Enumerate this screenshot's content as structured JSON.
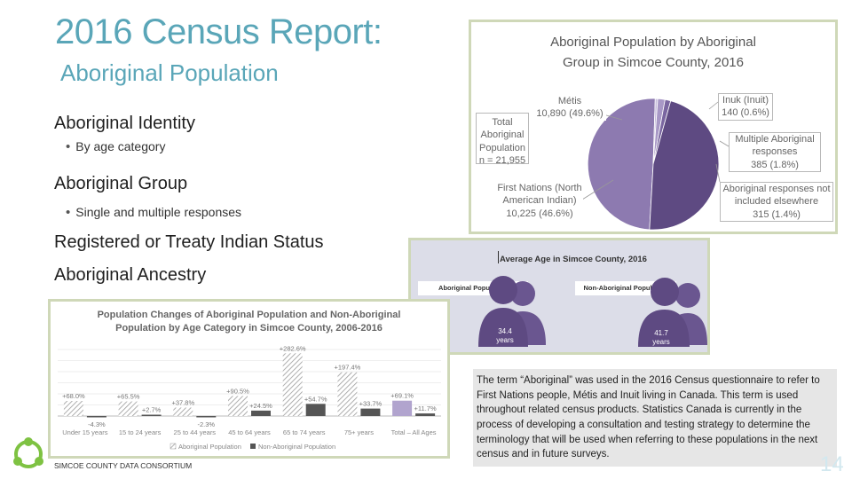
{
  "slide": {
    "title": "2016 Census Report:",
    "subtitle": "Aboriginal Population",
    "bullets": [
      {
        "heading": "Aboriginal Identity",
        "sub": "By age category"
      },
      {
        "heading": "Aboriginal Group",
        "sub": "Single and multiple responses"
      },
      {
        "heading": "Registered or Treaty Indian Status"
      },
      {
        "heading": "Aboriginal Ancestry"
      }
    ],
    "footer_org": "SIMCOE COUNTY DATA CONSORTIUM",
    "note": "The term “Aboriginal” was used in the 2016 Census questionnaire to refer to First Nations people, Métis and Inuit living in Canada. This term is used throughout related census products. Statistics Canada is currently in the process of developing a consultation and testing strategy to determine the terminology that will be used when referring to these populations in the next census and in future surveys.",
    "page_number": "14",
    "colors": {
      "accent": "#5aa6b8",
      "frame": "#cfd8b8",
      "purple_dark": "#5e4a82",
      "purple_light": "#b1a4ce"
    }
  },
  "pie_chart": {
    "title_line1": "Aboriginal Population by Aboriginal",
    "title_line2": "Group in Simcoe County, 2016",
    "total_line1": "Total",
    "total_line2": "Aboriginal",
    "total_line3": "Population",
    "total_line4": "n = 21,955",
    "slices": [
      {
        "line1": "Métis",
        "line2": "10,890 (49.6%)",
        "value": 49.6,
        "color": "#8d7ab0"
      },
      {
        "line1": "Inuk (Inuit)",
        "line2": "140 (0.6%)",
        "value": 0.6,
        "color": "#c6bcdc"
      },
      {
        "line1": "Multiple Aboriginal",
        "line2": "responses",
        "line3": "385 (1.8%)",
        "value": 1.8,
        "color": "#a898c6"
      },
      {
        "line1": "Aboriginal responses not",
        "line2": "included elsewhere",
        "line3": "315 (1.4%)",
        "value": 1.4,
        "color": "#7a66a0"
      },
      {
        "line1": "First Nations (North",
        "line2": "American Indian)",
        "line3": "10,225 (46.6%)",
        "value": 46.6,
        "color": "#5e4a82"
      }
    ]
  },
  "age_chart": {
    "title": "Average Age in Simcoe County, 2016",
    "groups": [
      {
        "label": "Aboriginal Population",
        "value": "34.4",
        "unit": "years",
        "color": "#5e4a82"
      },
      {
        "label": "Non-Aboriginal Population",
        "value": "41.7",
        "unit": "years",
        "color": "#6a5690"
      }
    ]
  },
  "chart_data": {
    "type": "bar",
    "title_line1": "Population Changes of Aboriginal Population and Non-Aboriginal",
    "title_line2": "Population by Age Category in Simcoe County, 2006-2016",
    "categories": [
      "Under 15 years",
      "15 to 24 years",
      "25 to 44 years",
      "45 to 64 years",
      "65 to 74 years",
      "75+ years",
      "Total – All Ages"
    ],
    "series": [
      {
        "name": "Aboriginal Population",
        "values": [
          68.0,
          65.5,
          37.8,
          90.5,
          282.6,
          197.4,
          69.1
        ],
        "labels": [
          "+68.0%",
          "+65.5%",
          "+37.8%",
          "+90.5%",
          "+282.6%",
          "+197.4%",
          "+69.1%"
        ]
      },
      {
        "name": "Non-Aboriginal Population",
        "values": [
          -4.3,
          2.7,
          -2.3,
          24.5,
          54.7,
          33.7,
          11.7
        ],
        "labels": [
          "-4.3%",
          "+2.7%",
          "-2.3%",
          "+24.5%",
          "+54.7%",
          "+33.7%",
          "+11.7%"
        ]
      }
    ],
    "ylim": [
      -20,
      300
    ],
    "legend": "bottom",
    "grid": true
  }
}
